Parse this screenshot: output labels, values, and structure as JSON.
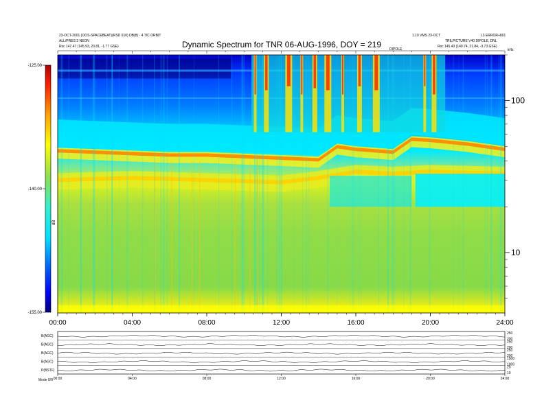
{
  "header": {
    "left_line1": "23-OCT-2001 (OOS-SPACEBEAT)(RSD 010) DB(8) - 4 TIC ORBIT",
    "left_line2": "ALL/PRES 3 NEON",
    "left_line3": "Rsc     147.47 (145.93, 20.81, -1.77 GSE)",
    "right_line1": "1.10 VMS 23-OCT",
    "right_line2": "L3 ERROR+801",
    "right_line3": "TRILPICTURE V40 DIPOLE, DNL",
    "right_line4": "Rsc    145.43 (149.74, 21.84, -3.73 GSE)",
    "mid_marker": "DIPOLE",
    "corner_unit": "kHz"
  },
  "chart_data": {
    "type": "heatmap",
    "title": "Dynamic Spectrum for TNR 06-AUG-1996, DOY = 219",
    "xlabel": "",
    "ylabel": "kHz",
    "x_tick_labels": [
      "00:00",
      "04:00",
      "08:00",
      "12:00",
      "16:00",
      "20:00",
      "24:00"
    ],
    "x_ticks_hours": [
      0,
      4,
      8,
      12,
      16,
      20,
      24
    ],
    "xlim_hours": [
      0,
      24
    ],
    "y_scale": "log",
    "ylim_khz": [
      4,
      200
    ],
    "y_tick_labels": [
      "10",
      "100"
    ],
    "y_ticks_khz": [
      10,
      100
    ],
    "colorbar": {
      "label": "dB",
      "range": [
        -155,
        -125
      ],
      "tick_labels": [
        "-125.00",
        "-140.00",
        "-155.00"
      ],
      "tick_values": [
        -125,
        -140,
        -155
      ],
      "colors": [
        "#00007a",
        "#0000ff",
        "#0060ff",
        "#00e0ff",
        "#30f0d0",
        "#8ee04a",
        "#d8e820",
        "#ffff00",
        "#ffa000",
        "#ff2000",
        "#b00000"
      ]
    },
    "features": [
      {
        "name": "plasma line",
        "x_hours": [
          0,
          2,
          4,
          6,
          8,
          10,
          12,
          14,
          15,
          16,
          18,
          19,
          20,
          22,
          24
        ],
        "y_khz": [
          47,
          46,
          45,
          44,
          44,
          43,
          42,
          41,
          50,
          48,
          46,
          56,
          55,
          52,
          48
        ]
      },
      {
        "name": "lower band",
        "x_hours": [
          0,
          4,
          8,
          12,
          14,
          16,
          18,
          20,
          24
        ],
        "y_khz": [
          30,
          31,
          30,
          29,
          31,
          34,
          33,
          34,
          33
        ]
      },
      {
        "name": "bursts",
        "x_hours": [
          10.6,
          11.2,
          12.4,
          13.1,
          13.8,
          14.5,
          15.3,
          16.2,
          17.1,
          19.7,
          20.2
        ],
        "y_khz": [
          150,
          160,
          170,
          150,
          165,
          160,
          150,
          170,
          160,
          170,
          150
        ]
      }
    ]
  },
  "bottom_panel": {
    "row_labels": [
      "B(AGC)",
      "B(AGC)",
      "B(AGC)",
      "B(AGC)",
      "P(BSTF)"
    ],
    "right_labels": [
      [
        "250",
        "200"
      ],
      [
        "250",
        "200"
      ],
      [
        "250",
        "200"
      ],
      [
        "1500",
        "1000"
      ],
      [
        "20",
        "10"
      ]
    ],
    "x_tick_labels": [
      "00:00",
      "04:00",
      "08:00",
      "12:00",
      "16:00",
      "20:00",
      "24:00"
    ],
    "footer_label": "Mode     0/0"
  }
}
